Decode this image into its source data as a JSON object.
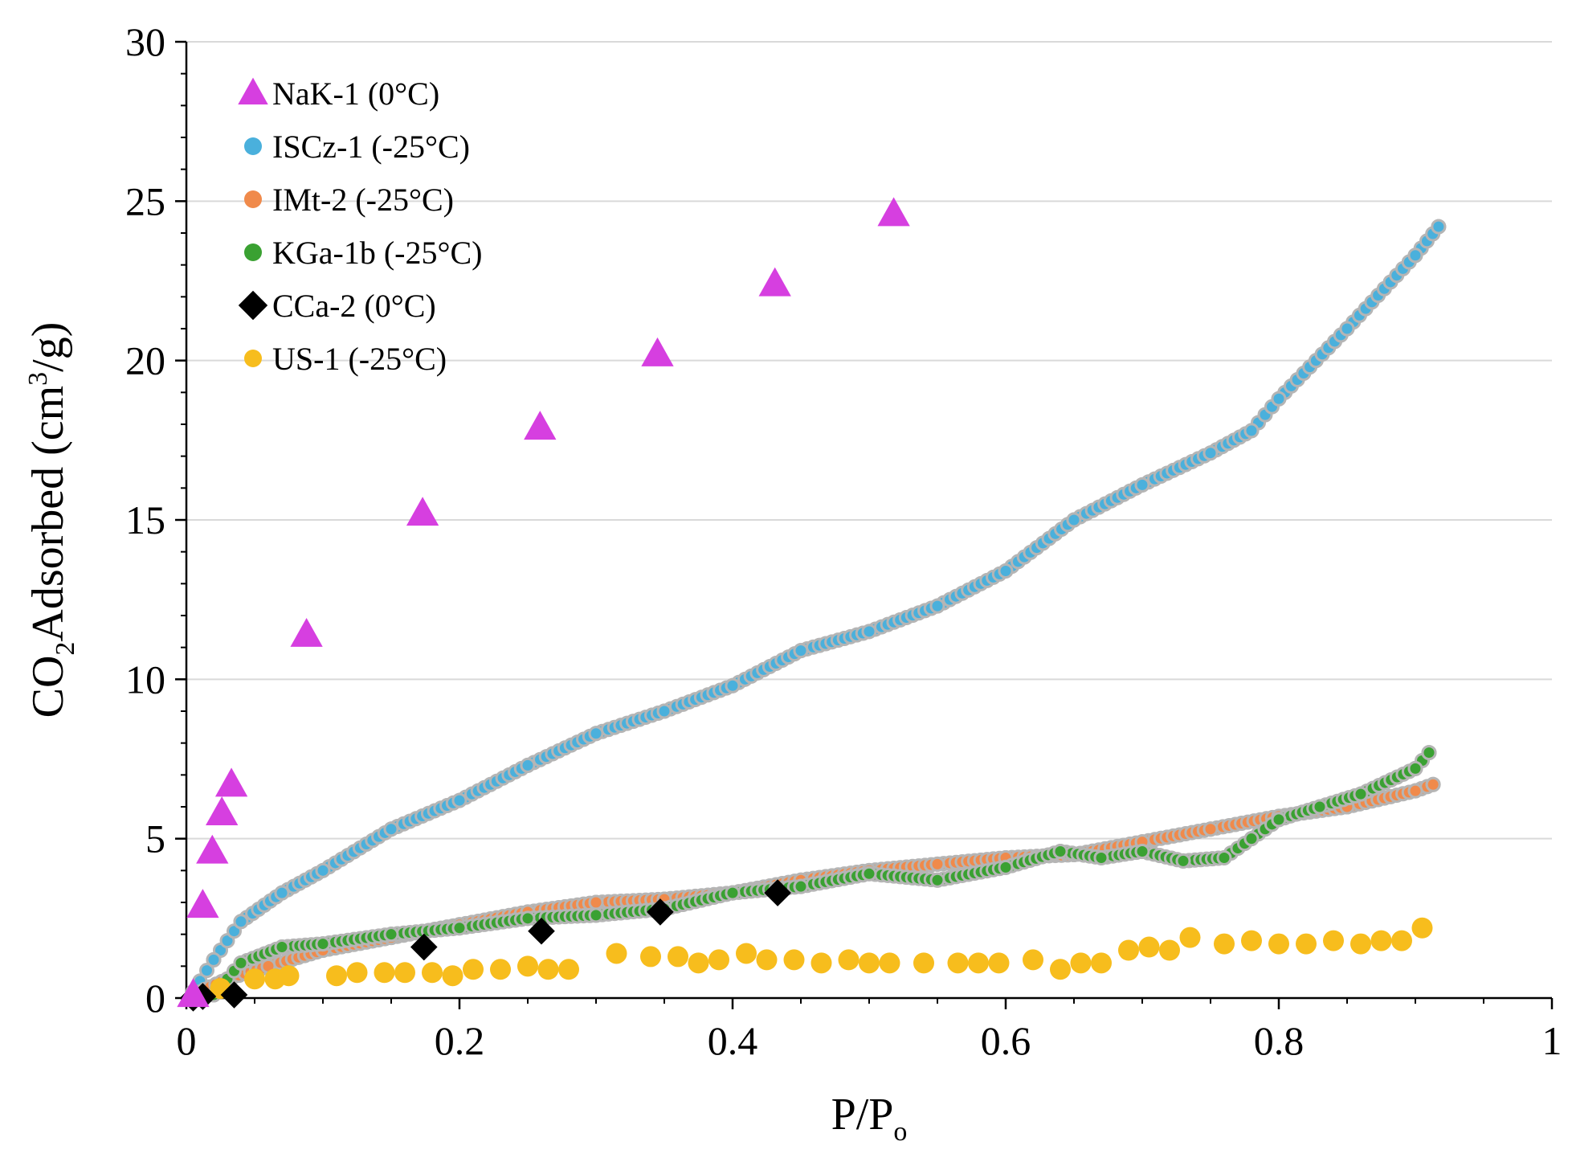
{
  "chart_data": {
    "type": "scatter",
    "title": "",
    "xlabel": {
      "main": "P/P",
      "sub": "o"
    },
    "ylabel": {
      "pre": "CO",
      "sub": "2",
      "mid": "Adsorbed (cm",
      "sup": "3",
      "post": "/g)"
    },
    "xlim": [
      0,
      1
    ],
    "ylim": [
      0,
      30
    ],
    "x_ticks": [
      0,
      0.2,
      0.4,
      0.6,
      0.8,
      1
    ],
    "x_tick_labels": [
      "0",
      "0.2",
      "0.4",
      "0.6",
      "0.8",
      "1"
    ],
    "y_ticks": [
      0,
      5,
      10,
      15,
      20,
      25,
      30
    ],
    "y_tick_labels": [
      "0",
      "5",
      "10",
      "15",
      "20",
      "25",
      "30"
    ],
    "grid": "horizontal",
    "legend_position": "top-left",
    "series": [
      {
        "name": "NaK-1 (0°C)",
        "marker": "triangle",
        "color": "#d63fe0",
        "dense": false,
        "x": [
          0.005,
          0.012,
          0.019,
          0.026,
          0.033,
          0.088,
          0.173,
          0.259,
          0.345,
          0.431,
          0.518
        ],
        "y": [
          0.1,
          2.9,
          4.6,
          5.8,
          6.7,
          11.4,
          15.2,
          17.9,
          20.2,
          22.4,
          24.6
        ]
      },
      {
        "name": "ISCz-1 (-25°C)",
        "marker": "circle",
        "color": "#4ab0dc",
        "dense": true,
        "x": [
          0.005,
          0.02,
          0.04,
          0.07,
          0.1,
          0.15,
          0.2,
          0.25,
          0.3,
          0.35,
          0.4,
          0.45,
          0.5,
          0.55,
          0.6,
          0.65,
          0.7,
          0.75,
          0.78,
          0.8,
          0.85,
          0.9,
          0.917
        ],
        "y": [
          0.2,
          1.2,
          2.4,
          3.3,
          4.0,
          5.3,
          6.2,
          7.3,
          8.3,
          9.0,
          9.8,
          10.9,
          11.5,
          12.3,
          13.4,
          15.0,
          16.1,
          17.1,
          17.8,
          18.8,
          21.0,
          23.3,
          24.2
        ]
      },
      {
        "name": "IMt-2 (-25°C)",
        "marker": "circle",
        "color": "#f08a4b",
        "dense": true,
        "x": [
          0.005,
          0.03,
          0.06,
          0.1,
          0.15,
          0.2,
          0.25,
          0.3,
          0.35,
          0.4,
          0.45,
          0.5,
          0.55,
          0.6,
          0.65,
          0.7,
          0.75,
          0.8,
          0.85,
          0.9,
          0.913
        ],
        "y": [
          0.1,
          0.6,
          1.0,
          1.5,
          1.9,
          2.3,
          2.7,
          3.0,
          3.1,
          3.3,
          3.7,
          4.0,
          4.2,
          4.4,
          4.5,
          4.9,
          5.3,
          5.7,
          6.0,
          6.5,
          6.7
        ]
      },
      {
        "name": "KGa-1b (-25°C)",
        "marker": "circle",
        "color": "#3aa132",
        "dense": true,
        "x": [
          0.02,
          0.04,
          0.07,
          0.1,
          0.15,
          0.2,
          0.25,
          0.3,
          0.35,
          0.4,
          0.45,
          0.5,
          0.55,
          0.6,
          0.64,
          0.67,
          0.7,
          0.73,
          0.76,
          0.78,
          0.8,
          0.83,
          0.86,
          0.9,
          0.91
        ],
        "y": [
          0.1,
          1.1,
          1.6,
          1.7,
          2.0,
          2.2,
          2.5,
          2.6,
          2.8,
          3.3,
          3.5,
          3.9,
          3.7,
          4.1,
          4.6,
          4.4,
          4.6,
          4.3,
          4.4,
          5.0,
          5.6,
          6.0,
          6.4,
          7.2,
          7.7
        ]
      },
      {
        "name": "CCa-2 (0°C)",
        "marker": "diamond",
        "color": "#000000",
        "dense": false,
        "x": [
          0.005,
          0.012,
          0.035,
          0.174,
          0.26,
          0.347,
          0.433
        ],
        "y": [
          0.0,
          0.05,
          0.1,
          1.6,
          2.1,
          2.7,
          3.3
        ]
      },
      {
        "name": "US-1 (-25°C)",
        "marker": "circle",
        "color": "#f7bd1d",
        "dense": false,
        "x": [
          0.025,
          0.05,
          0.065,
          0.075,
          0.11,
          0.125,
          0.145,
          0.16,
          0.18,
          0.195,
          0.21,
          0.23,
          0.25,
          0.265,
          0.28,
          0.315,
          0.34,
          0.36,
          0.375,
          0.39,
          0.41,
          0.425,
          0.445,
          0.465,
          0.485,
          0.5,
          0.515,
          0.54,
          0.565,
          0.58,
          0.595,
          0.62,
          0.64,
          0.655,
          0.67,
          0.69,
          0.705,
          0.72,
          0.735,
          0.76,
          0.78,
          0.8,
          0.82,
          0.84,
          0.86,
          0.875,
          0.89,
          0.905
        ],
        "y": [
          0.3,
          0.6,
          0.6,
          0.7,
          0.7,
          0.8,
          0.8,
          0.8,
          0.8,
          0.7,
          0.9,
          0.9,
          1.0,
          0.9,
          0.9,
          1.4,
          1.3,
          1.3,
          1.1,
          1.2,
          1.4,
          1.2,
          1.2,
          1.1,
          1.2,
          1.1,
          1.1,
          1.1,
          1.1,
          1.1,
          1.1,
          1.2,
          0.9,
          1.1,
          1.1,
          1.5,
          1.6,
          1.5,
          1.9,
          1.7,
          1.8,
          1.7,
          1.7,
          1.8,
          1.7,
          1.8,
          1.8,
          2.2
        ]
      }
    ]
  }
}
